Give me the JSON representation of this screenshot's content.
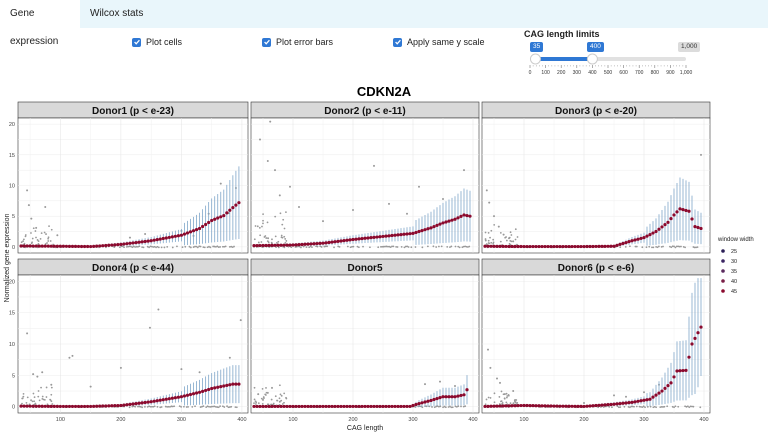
{
  "tabs": [
    {
      "label": "Gene expression",
      "active": true
    },
    {
      "label": "Wilcox stats",
      "active": false
    }
  ],
  "checkboxes": [
    {
      "label": "Plot cells",
      "checked": true
    },
    {
      "label": "Plot error bars",
      "checked": true
    },
    {
      "label": "Apply same y scale",
      "checked": true
    }
  ],
  "slider": {
    "title": "CAG length limits",
    "min_label": "0",
    "max_label": "1,000",
    "low": "35",
    "high": "400",
    "low_value": 35,
    "high_value": 400,
    "range_min": 0,
    "range_max": 1000,
    "ticks": [
      "0",
      "100",
      "200",
      "300",
      "400",
      "500",
      "600",
      "700",
      "800",
      "900",
      "1,000"
    ]
  },
  "accent_color": "#2f78d4",
  "chart_data": {
    "type": "scatter",
    "title": "CDKN2A",
    "xlabel": "CAG length",
    "ylabel": "Normalized gene expression",
    "xlim": [
      30,
      410
    ],
    "ylim": [
      -1,
      21
    ],
    "x_ticks": [
      "100",
      "200",
      "300",
      "400"
    ],
    "y_ticks": [
      "0",
      "5",
      "10",
      "15",
      "20"
    ],
    "legend": {
      "title": "window width",
      "entries": [
        "25",
        "30",
        "35",
        "40",
        "45"
      ],
      "position": "right"
    },
    "point_color": "#8b0a2e",
    "error_color": "#7fa6c9",
    "cell_color": "#999999",
    "facets": [
      {
        "label": "Donor1 (p < e-23)",
        "trend": [
          [
            35,
            0.15
          ],
          [
            100,
            0.1
          ],
          [
            150,
            0.05
          ],
          [
            200,
            0.4
          ],
          [
            250,
            1.0
          ],
          [
            300,
            1.9
          ],
          [
            330,
            3.0
          ],
          [
            350,
            4.3
          ],
          [
            370,
            5.1
          ],
          [
            385,
            6.4
          ],
          [
            395,
            7.2
          ]
        ],
        "outliers": [
          [
            45,
            9.2
          ],
          [
            48,
            6.8
          ],
          [
            52,
            4.6
          ],
          [
            60,
            3.1
          ],
          [
            75,
            6.5
          ],
          [
            95,
            1.9
          ],
          [
            215,
            1.5
          ],
          [
            240,
            2.1
          ],
          [
            262,
            1.2
          ],
          [
            300,
            2.6
          ],
          [
            320,
            1.8
          ],
          [
            345,
            5.4
          ],
          [
            365,
            10.3
          ],
          [
            378,
            5.5
          ],
          [
            390,
            9.6
          ]
        ]
      },
      {
        "label": "Donor2 (p < e-11)",
        "trend": [
          [
            35,
            0.2
          ],
          [
            100,
            0.3
          ],
          [
            150,
            0.6
          ],
          [
            200,
            1.2
          ],
          [
            250,
            1.7
          ],
          [
            300,
            2.2
          ],
          [
            330,
            3.1
          ],
          [
            350,
            3.9
          ],
          [
            370,
            4.5
          ],
          [
            385,
            5.2
          ],
          [
            395,
            5.0
          ]
        ],
        "outliers": [
          [
            45,
            17.5
          ],
          [
            58,
            14.0
          ],
          [
            62,
            20.4
          ],
          [
            70,
            12.5
          ],
          [
            78,
            8.4
          ],
          [
            95,
            9.8
          ],
          [
            110,
            6.5
          ],
          [
            150,
            4.2
          ],
          [
            200,
            6.0
          ],
          [
            235,
            13.2
          ],
          [
            260,
            7.0
          ],
          [
            290,
            5.4
          ],
          [
            310,
            9.8
          ],
          [
            350,
            7.8
          ],
          [
            385,
            12.5
          ]
        ]
      },
      {
        "label": "Donor3 (p < e-20)",
        "trend": [
          [
            35,
            0.1
          ],
          [
            100,
            0.05
          ],
          [
            150,
            0.05
          ],
          [
            200,
            0.05
          ],
          [
            250,
            0.1
          ],
          [
            280,
            1.0
          ],
          [
            300,
            1.5
          ],
          [
            320,
            2.5
          ],
          [
            340,
            4.0
          ],
          [
            350,
            5.2
          ],
          [
            360,
            6.2
          ],
          [
            375,
            5.8
          ],
          [
            385,
            3.3
          ],
          [
            395,
            3.0
          ]
        ],
        "outliers": [
          [
            38,
            9.2
          ],
          [
            42,
            7.2
          ],
          [
            50,
            5.0
          ],
          [
            58,
            3.3
          ],
          [
            66,
            2.0
          ],
          [
            75,
            1.4
          ],
          [
            82,
            0.9
          ],
          [
            395,
            15.0
          ]
        ]
      },
      {
        "label": "Donor4 (p < e-44)",
        "trend": [
          [
            35,
            0.1
          ],
          [
            100,
            0.05
          ],
          [
            150,
            0.05
          ],
          [
            200,
            0.2
          ],
          [
            250,
            0.8
          ],
          [
            300,
            1.6
          ],
          [
            330,
            2.3
          ],
          [
            350,
            2.9
          ],
          [
            370,
            3.3
          ],
          [
            385,
            3.6
          ],
          [
            395,
            3.6
          ]
        ],
        "outliers": [
          [
            45,
            11.7
          ],
          [
            55,
            5.2
          ],
          [
            62,
            4.8
          ],
          [
            70,
            5.5
          ],
          [
            85,
            3.5
          ],
          [
            115,
            7.8
          ],
          [
            120,
            8.1
          ],
          [
            150,
            3.2
          ],
          [
            200,
            6.2
          ],
          [
            248,
            12.6
          ],
          [
            262,
            15.5
          ],
          [
            300,
            6.0
          ],
          [
            330,
            5.5
          ],
          [
            380,
            7.8
          ],
          [
            398,
            13.8
          ]
        ]
      },
      {
        "label": "Donor5",
        "trend": [
          [
            35,
            0.05
          ],
          [
            100,
            0.05
          ],
          [
            150,
            0.05
          ],
          [
            200,
            0.05
          ],
          [
            250,
            0.05
          ],
          [
            295,
            0.05
          ],
          [
            310,
            0.5
          ],
          [
            330,
            1.0
          ],
          [
            350,
            1.6
          ],
          [
            370,
            1.6
          ],
          [
            385,
            1.9
          ],
          [
            393,
            3.2
          ]
        ],
        "outliers": [
          [
            42,
            2.0
          ],
          [
            50,
            1.1
          ],
          [
            58,
            2.2
          ],
          [
            65,
            3.0
          ],
          [
            78,
            0.8
          ],
          [
            320,
            3.6
          ],
          [
            345,
            4.0
          ],
          [
            370,
            3.3
          ]
        ]
      },
      {
        "label": "Donor6 (p < e-6)",
        "trend": [
          [
            35,
            0.05
          ],
          [
            100,
            0.2
          ],
          [
            150,
            0.1
          ],
          [
            200,
            0.05
          ],
          [
            250,
            0.4
          ],
          [
            280,
            0.7
          ],
          [
            310,
            1.2
          ],
          [
            330,
            2.5
          ],
          [
            345,
            3.8
          ],
          [
            355,
            5.7
          ],
          [
            370,
            5.8
          ],
          [
            380,
            10.0
          ],
          [
            395,
            12.7
          ]
        ],
        "outliers": [
          [
            40,
            9.1
          ],
          [
            44,
            6.2
          ],
          [
            55,
            4.5
          ],
          [
            60,
            3.8
          ],
          [
            68,
            2.0
          ],
          [
            82,
            2.5
          ],
          [
            200,
            0.6
          ],
          [
            250,
            1.8
          ],
          [
            270,
            1.6
          ],
          [
            300,
            2.3
          ],
          [
            325,
            3.5
          ]
        ]
      }
    ]
  }
}
